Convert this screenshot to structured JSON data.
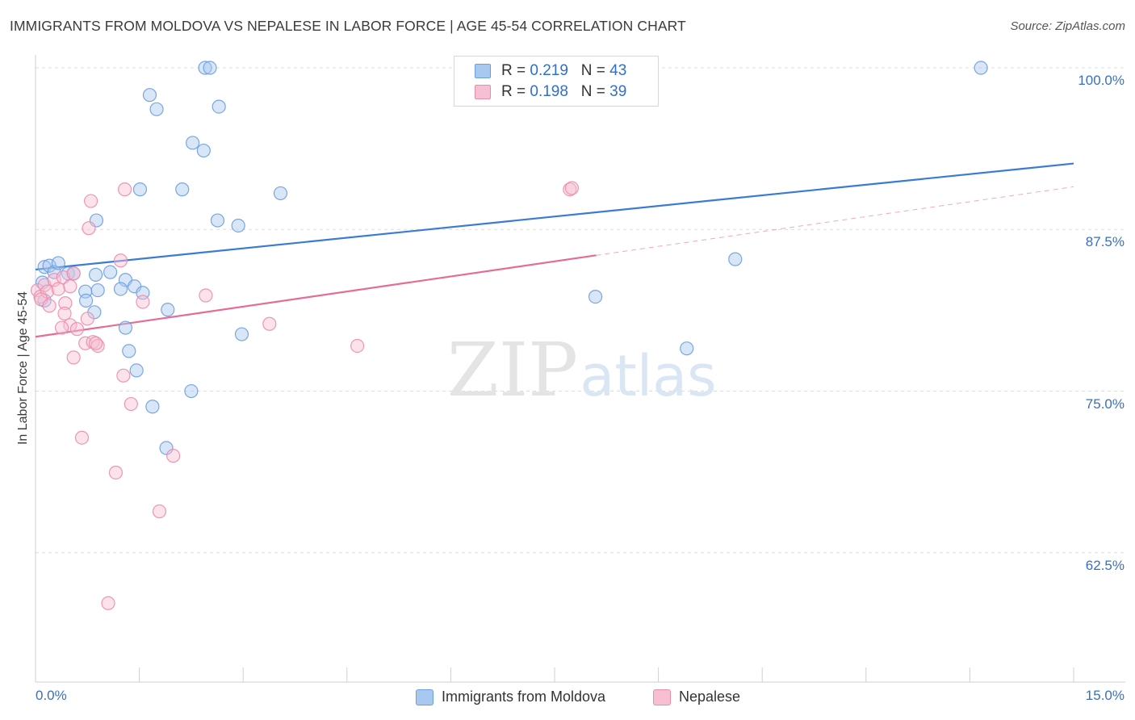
{
  "header": {
    "title": "IMMIGRANTS FROM MOLDOVA VS NEPALESE IN LABOR FORCE | AGE 45-54 CORRELATION CHART",
    "source": "Source: ZipAtlas.com"
  },
  "watermark": {
    "zip": "ZIP",
    "atlas": "atlas"
  },
  "legend": {
    "rows": [
      {
        "r_label": "R =",
        "r_value": "0.219",
        "n_label": "N =",
        "n_value": "43",
        "color": "#a9c8f0",
        "border": "#6a9ee0"
      },
      {
        "r_label": "R =",
        "r_value": "0.198",
        "n_label": "N =",
        "n_value": "39",
        "color": "#f7bfd2",
        "border": "#ec8cab"
      }
    ]
  },
  "bottom_legend": [
    {
      "label": "Immigrants from Moldova",
      "color": "#a9c8f0",
      "border": "#6a9ee0"
    },
    {
      "label": "Nepalese",
      "color": "#f7bfd2",
      "border": "#ec8cab"
    }
  ],
  "chart_data": {
    "type": "scatter",
    "title": "IMMIGRANTS FROM MOLDOVA VS NEPALESE IN LABOR FORCE | AGE 45-54 CORRELATION CHART",
    "ylabel": "In Labor Force | Age 45-54",
    "xlabel": "",
    "xlim": [
      0,
      15
    ],
    "ylim": [
      52.5,
      101.5
    ],
    "x_tick_labels": [
      "0.0%",
      "15.0%"
    ],
    "y_tick_labels": [
      "100.0%",
      "87.5%",
      "75.0%",
      "62.5%"
    ],
    "y_ticks": [
      100,
      87.5,
      75,
      62.5
    ],
    "grid": "horizontal dashed",
    "legend_position": "top-center",
    "series": [
      {
        "name": "Immigrants from Moldova",
        "color": "#6a9ee0",
        "fill": "#a9c8f0",
        "points": [
          [
            0.13,
            84.6
          ],
          [
            0.2,
            84.7
          ],
          [
            0.27,
            84.2
          ],
          [
            0.33,
            84.9
          ],
          [
            0.47,
            84.1
          ],
          [
            0.1,
            83.4
          ],
          [
            0.13,
            82.0
          ],
          [
            0.55,
            84.1
          ],
          [
            0.87,
            84.0
          ],
          [
            1.08,
            84.2
          ],
          [
            1.3,
            83.6
          ],
          [
            1.43,
            83.1
          ],
          [
            1.23,
            82.9
          ],
          [
            0.72,
            82.7
          ],
          [
            0.9,
            82.8
          ],
          [
            1.55,
            82.6
          ],
          [
            0.73,
            82.0
          ],
          [
            1.91,
            81.3
          ],
          [
            0.85,
            81.1
          ],
          [
            1.3,
            79.9
          ],
          [
            1.35,
            78.1
          ],
          [
            1.46,
            76.6
          ],
          [
            1.51,
            90.6
          ],
          [
            0.88,
            88.2
          ],
          [
            2.12,
            90.6
          ],
          [
            2.63,
            88.2
          ],
          [
            2.93,
            87.8
          ],
          [
            3.54,
            90.3
          ],
          [
            1.65,
            97.9
          ],
          [
            1.75,
            96.8
          ],
          [
            2.27,
            94.2
          ],
          [
            2.43,
            93.6
          ],
          [
            2.65,
            97.0
          ],
          [
            2.45,
            100.0
          ],
          [
            2.52,
            100.0
          ],
          [
            2.98,
            79.4
          ],
          [
            2.25,
            75.0
          ],
          [
            1.69,
            73.8
          ],
          [
            1.89,
            70.6
          ],
          [
            8.09,
            82.3
          ],
          [
            9.41,
            78.3
          ],
          [
            10.11,
            85.2
          ],
          [
            13.66,
            100.0
          ]
        ]
      },
      {
        "name": "Nepalese",
        "color": "#ec8cab",
        "fill": "#f7bfd2",
        "points": [
          [
            0.03,
            82.8
          ],
          [
            0.07,
            82.3
          ],
          [
            0.13,
            83.2
          ],
          [
            0.17,
            82.7
          ],
          [
            0.08,
            82.1
          ],
          [
            0.2,
            81.6
          ],
          [
            0.27,
            83.6
          ],
          [
            0.33,
            82.9
          ],
          [
            0.4,
            83.8
          ],
          [
            0.5,
            83.1
          ],
          [
            0.55,
            84.1
          ],
          [
            0.43,
            81.8
          ],
          [
            0.42,
            81.0
          ],
          [
            0.5,
            80.1
          ],
          [
            0.6,
            79.8
          ],
          [
            0.38,
            79.9
          ],
          [
            0.75,
            80.6
          ],
          [
            0.72,
            78.7
          ],
          [
            0.83,
            78.8
          ],
          [
            0.9,
            78.5
          ],
          [
            0.55,
            77.6
          ],
          [
            1.27,
            76.2
          ],
          [
            1.38,
            74.0
          ],
          [
            0.67,
            71.4
          ],
          [
            1.99,
            70.0
          ],
          [
            1.16,
            68.7
          ],
          [
            1.79,
            65.7
          ],
          [
            1.05,
            58.6
          ],
          [
            1.23,
            85.1
          ],
          [
            1.29,
            90.6
          ],
          [
            0.8,
            89.7
          ],
          [
            0.77,
            87.6
          ],
          [
            1.55,
            81.9
          ],
          [
            2.46,
            82.4
          ],
          [
            3.38,
            80.2
          ],
          [
            4.65,
            78.5
          ],
          [
            7.72,
            90.6
          ],
          [
            7.75,
            90.7
          ],
          [
            0.87,
            78.7
          ]
        ]
      }
    ],
    "trend_lines": [
      {
        "series": "Immigrants from Moldova",
        "x": [
          0,
          15
        ],
        "y": [
          84.4,
          92.6
        ],
        "style": "solid"
      },
      {
        "series": "Nepalese",
        "x": [
          0,
          8.1
        ],
        "y": [
          79.2,
          85.5
        ],
        "style": "solid"
      },
      {
        "series": "Nepalese",
        "x": [
          8.1,
          15
        ],
        "y": [
          85.5,
          90.8
        ],
        "style": "dashed"
      }
    ]
  }
}
